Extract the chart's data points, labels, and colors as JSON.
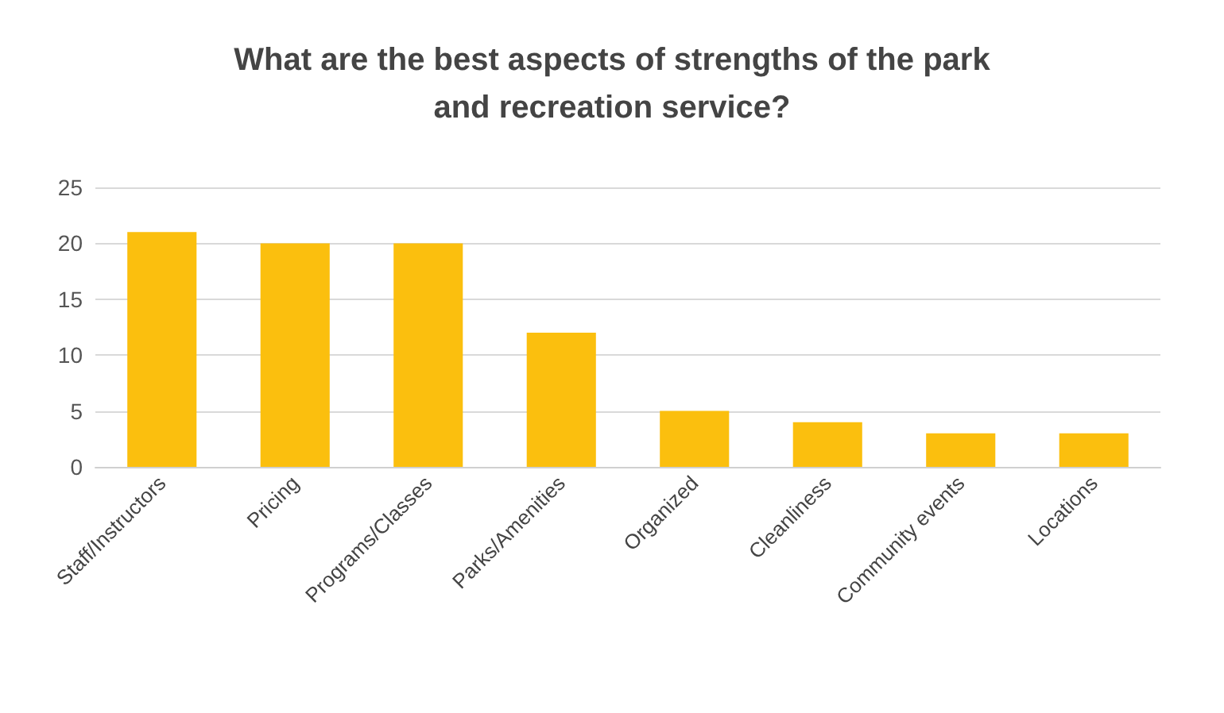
{
  "chart_data": {
    "type": "bar",
    "title": "What are the best aspects of strengths of the park\nand recreation service?",
    "categories": [
      "Staff/Instructors",
      "Pricing",
      "Programs/Classes",
      "Parks/Amenities",
      "Organized",
      "Cleanliness",
      "Community events",
      "Locations"
    ],
    "values": [
      21,
      20,
      20,
      12,
      5,
      4,
      3,
      3
    ],
    "color": "#fbbf0e",
    "ylim": [
      0,
      25
    ],
    "yticks": [
      0,
      5,
      10,
      15,
      20,
      25
    ],
    "grid": "y"
  }
}
